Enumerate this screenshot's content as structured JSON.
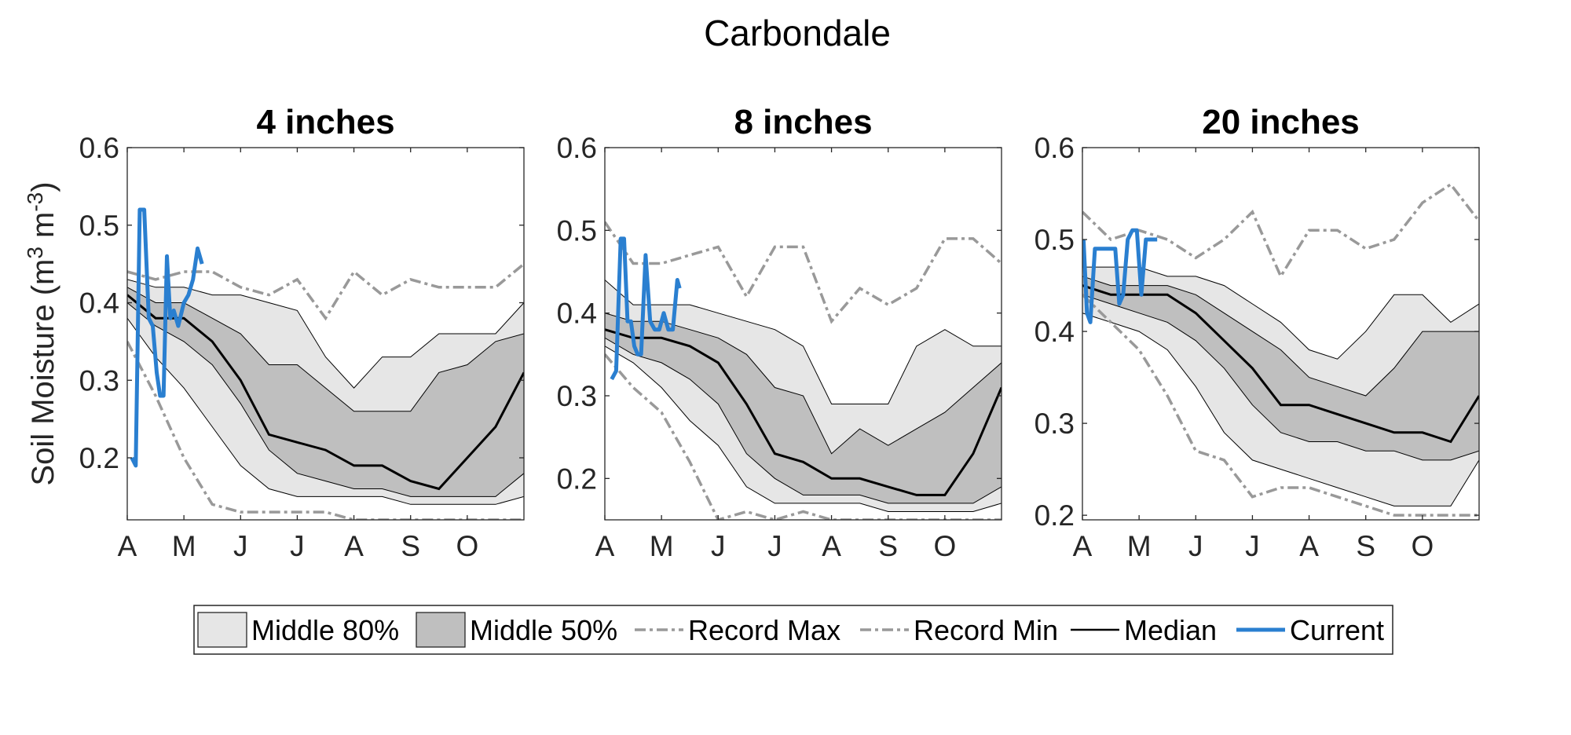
{
  "figure_title": "Carbondale",
  "y_axis_label": "Soil Moisture (m",
  "y_axis_label_sup1": "3",
  "y_axis_label_mid": " m",
  "y_axis_label_sup2": "-3",
  "y_axis_label_end": ")",
  "colors": {
    "band80": "#e6e6e6",
    "band50": "#bfbfbf",
    "record": "#999999",
    "median": "#000000",
    "current": "#2a7fd0"
  },
  "legend": [
    {
      "key": "band80",
      "label": "Middle 80%"
    },
    {
      "key": "band50",
      "label": "Middle 50%"
    },
    {
      "key": "recmax",
      "label": "Record Max"
    },
    {
      "key": "recmin",
      "label": "Record Min"
    },
    {
      "key": "median",
      "label": "Median"
    },
    {
      "key": "current",
      "label": "Current"
    }
  ],
  "chart_data": [
    {
      "type": "area",
      "title": "4 inches",
      "xlabel": "",
      "ylabel": "Soil Moisture (m3 m-3)",
      "xlim": [
        0,
        7
      ],
      "ylim": [
        0.12,
        0.6
      ],
      "xtick_positions": [
        0,
        1,
        2,
        3,
        4,
        5,
        6
      ],
      "xtick_labels": [
        "A",
        "M",
        "J",
        "J",
        "A",
        "S",
        "O"
      ],
      "yticks": [
        0.2,
        0.3,
        0.4,
        0.5,
        0.6
      ],
      "x": [
        0,
        0.5,
        1,
        1.5,
        2,
        2.5,
        3,
        3.5,
        4,
        4.5,
        5,
        5.5,
        6,
        6.5,
        7
      ],
      "p10": [
        0.38,
        0.33,
        0.29,
        0.24,
        0.19,
        0.16,
        0.15,
        0.15,
        0.15,
        0.15,
        0.14,
        0.14,
        0.14,
        0.14,
        0.15
      ],
      "p25": [
        0.4,
        0.37,
        0.35,
        0.32,
        0.27,
        0.21,
        0.18,
        0.17,
        0.16,
        0.16,
        0.15,
        0.15,
        0.15,
        0.15,
        0.18
      ],
      "median": [
        0.41,
        0.38,
        0.38,
        0.35,
        0.3,
        0.23,
        0.22,
        0.21,
        0.19,
        0.19,
        0.17,
        0.16,
        0.2,
        0.24,
        0.31
      ],
      "p75": [
        0.42,
        0.4,
        0.4,
        0.38,
        0.36,
        0.32,
        0.32,
        0.29,
        0.26,
        0.26,
        0.26,
        0.31,
        0.32,
        0.35,
        0.36
      ],
      "p90": [
        0.43,
        0.42,
        0.42,
        0.41,
        0.41,
        0.4,
        0.39,
        0.33,
        0.29,
        0.33,
        0.33,
        0.36,
        0.36,
        0.36,
        0.4
      ],
      "record_max": [
        0.44,
        0.43,
        0.44,
        0.44,
        0.42,
        0.41,
        0.43,
        0.38,
        0.44,
        0.41,
        0.43,
        0.42,
        0.42,
        0.42,
        0.45
      ],
      "record_min": [
        0.35,
        0.28,
        0.2,
        0.14,
        0.13,
        0.13,
        0.13,
        0.13,
        0.12,
        0.12,
        0.12,
        0.12,
        0.12,
        0.12,
        0.12
      ],
      "current_x": [
        0.08,
        0.15,
        0.22,
        0.3,
        0.38,
        0.45,
        0.52,
        0.58,
        0.64,
        0.7,
        0.76,
        0.82,
        0.9,
        1.0,
        1.08,
        1.16,
        1.24,
        1.32
      ],
      "current_y": [
        0.2,
        0.19,
        0.52,
        0.52,
        0.38,
        0.37,
        0.31,
        0.28,
        0.28,
        0.46,
        0.38,
        0.39,
        0.37,
        0.4,
        0.41,
        0.43,
        0.47,
        0.45
      ]
    },
    {
      "type": "area",
      "title": "8 inches",
      "xlabel": "",
      "ylabel": "",
      "xlim": [
        0,
        7
      ],
      "ylim": [
        0.15,
        0.6
      ],
      "xtick_positions": [
        0,
        1,
        2,
        3,
        4,
        5,
        6
      ],
      "xtick_labels": [
        "A",
        "M",
        "J",
        "J",
        "A",
        "S",
        "O"
      ],
      "yticks": [
        0.2,
        0.3,
        0.4,
        0.5,
        0.6
      ],
      "x": [
        0,
        0.5,
        1,
        1.5,
        2,
        2.5,
        3,
        3.5,
        4,
        4.5,
        5,
        5.5,
        6,
        6.5,
        7
      ],
      "p10": [
        0.36,
        0.34,
        0.31,
        0.27,
        0.24,
        0.19,
        0.17,
        0.17,
        0.17,
        0.17,
        0.16,
        0.16,
        0.16,
        0.16,
        0.17
      ],
      "p25": [
        0.37,
        0.35,
        0.34,
        0.32,
        0.29,
        0.23,
        0.2,
        0.18,
        0.18,
        0.18,
        0.17,
        0.17,
        0.17,
        0.17,
        0.19
      ],
      "median": [
        0.38,
        0.37,
        0.37,
        0.36,
        0.34,
        0.29,
        0.23,
        0.22,
        0.2,
        0.2,
        0.19,
        0.18,
        0.18,
        0.23,
        0.31
      ],
      "p75": [
        0.4,
        0.39,
        0.39,
        0.38,
        0.37,
        0.35,
        0.31,
        0.3,
        0.23,
        0.26,
        0.24,
        0.26,
        0.28,
        0.31,
        0.34
      ],
      "p90": [
        0.44,
        0.41,
        0.41,
        0.41,
        0.4,
        0.39,
        0.38,
        0.36,
        0.29,
        0.29,
        0.29,
        0.36,
        0.38,
        0.36,
        0.36
      ],
      "record_max": [
        0.51,
        0.46,
        0.46,
        0.47,
        0.48,
        0.42,
        0.48,
        0.48,
        0.39,
        0.43,
        0.41,
        0.43,
        0.49,
        0.49,
        0.46
      ],
      "record_min": [
        0.35,
        0.31,
        0.28,
        0.22,
        0.15,
        0.16,
        0.15,
        0.16,
        0.15,
        0.15,
        0.15,
        0.15,
        0.15,
        0.15,
        0.15
      ],
      "current_x": [
        0.12,
        0.2,
        0.28,
        0.34,
        0.4,
        0.46,
        0.52,
        0.58,
        0.64,
        0.72,
        0.8,
        0.88,
        0.96,
        1.04,
        1.12,
        1.2,
        1.28,
        1.32
      ],
      "current_y": [
        0.32,
        0.33,
        0.49,
        0.49,
        0.39,
        0.39,
        0.36,
        0.35,
        0.35,
        0.47,
        0.39,
        0.38,
        0.38,
        0.4,
        0.38,
        0.38,
        0.44,
        0.43
      ]
    },
    {
      "type": "area",
      "title": "20 inches",
      "xlabel": "",
      "ylabel": "",
      "xlim": [
        0,
        7
      ],
      "ylim": [
        0.195,
        0.6
      ],
      "xtick_positions": [
        0,
        1,
        2,
        3,
        4,
        5,
        6
      ],
      "xtick_labels": [
        "A",
        "M",
        "J",
        "J",
        "A",
        "S",
        "O"
      ],
      "yticks": [
        0.2,
        0.3,
        0.4,
        0.5,
        0.6
      ],
      "x": [
        0,
        0.5,
        1,
        1.5,
        2,
        2.5,
        3,
        3.5,
        4,
        4.5,
        5,
        5.5,
        6,
        6.5,
        7
      ],
      "p10": [
        0.42,
        0.41,
        0.4,
        0.38,
        0.34,
        0.29,
        0.26,
        0.25,
        0.24,
        0.23,
        0.22,
        0.21,
        0.21,
        0.21,
        0.26
      ],
      "p25": [
        0.44,
        0.43,
        0.42,
        0.41,
        0.39,
        0.36,
        0.32,
        0.29,
        0.28,
        0.28,
        0.27,
        0.27,
        0.26,
        0.26,
        0.27
      ],
      "median": [
        0.45,
        0.44,
        0.44,
        0.44,
        0.42,
        0.39,
        0.36,
        0.32,
        0.32,
        0.31,
        0.3,
        0.29,
        0.29,
        0.28,
        0.33
      ],
      "p75": [
        0.46,
        0.45,
        0.45,
        0.45,
        0.44,
        0.42,
        0.4,
        0.38,
        0.35,
        0.34,
        0.33,
        0.36,
        0.4,
        0.4,
        0.4
      ],
      "p90": [
        0.47,
        0.47,
        0.47,
        0.46,
        0.46,
        0.45,
        0.43,
        0.41,
        0.38,
        0.37,
        0.4,
        0.44,
        0.44,
        0.41,
        0.43
      ],
      "record_max": [
        0.53,
        0.5,
        0.51,
        0.5,
        0.48,
        0.5,
        0.53,
        0.46,
        0.51,
        0.51,
        0.49,
        0.5,
        0.54,
        0.56,
        0.52
      ],
      "record_min": [
        0.44,
        0.41,
        0.38,
        0.33,
        0.27,
        0.26,
        0.22,
        0.23,
        0.23,
        0.22,
        0.21,
        0.2,
        0.2,
        0.2,
        0.2
      ],
      "current_x": [
        0.02,
        0.08,
        0.14,
        0.22,
        0.3,
        0.4,
        0.5,
        0.58,
        0.65,
        0.72,
        0.8,
        0.88,
        0.96,
        1.04,
        1.12,
        1.2,
        1.28,
        1.32
      ],
      "current_y": [
        0.5,
        0.42,
        0.41,
        0.49,
        0.49,
        0.49,
        0.49,
        0.49,
        0.43,
        0.44,
        0.5,
        0.51,
        0.51,
        0.44,
        0.5,
        0.5,
        0.5,
        0.5
      ]
    }
  ]
}
